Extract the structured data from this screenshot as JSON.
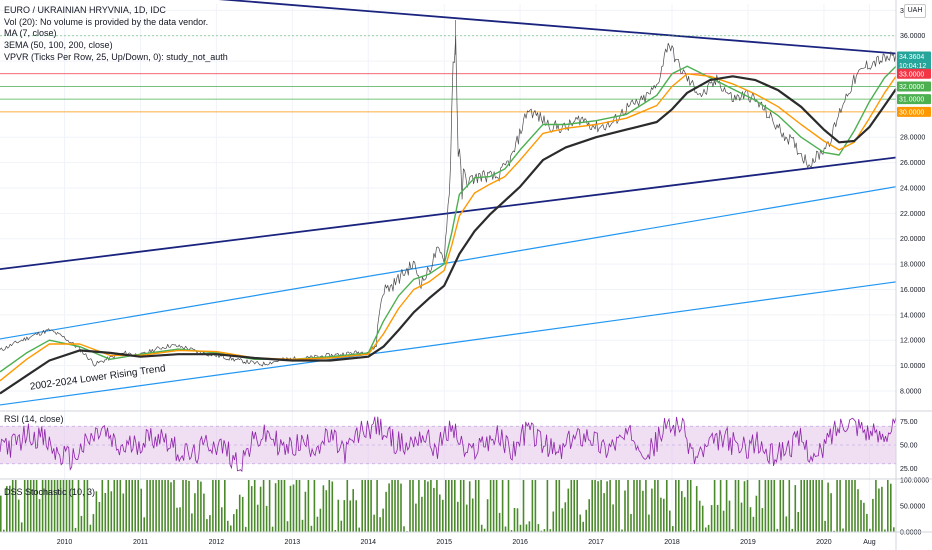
{
  "header": {
    "title": "EURO / UKRAINIAN HRYVNIA, 1D, IDC",
    "studies": [
      "Vol (20): No volume is provided by the data vendor.",
      "MA (7, close)",
      "3EMA (50, 100, 200, close)",
      "VPVR (Ticks Per Row, 25, Up/Down, 0): study_not_auth"
    ]
  },
  "currency_button": "UAH",
  "price_tags": [
    {
      "label": "34.3604",
      "value": 34.36,
      "color": "#26a69a"
    },
    {
      "label": "10:04:12",
      "value": 33.65,
      "color": "#26a69a"
    },
    {
      "label": "33.0000",
      "value": 33.0,
      "color": "#f23645"
    },
    {
      "label": "32.0000",
      "value": 32.0,
      "color": "#4caf50"
    },
    {
      "label": "31.0000",
      "value": 31.0,
      "color": "#4caf50"
    },
    {
      "label": "30.0000",
      "value": 30.0,
      "color": "#ff9800"
    }
  ],
  "trend_label": "2002-2024 Lower Rising Trend",
  "rsi_title": "RSI (14, close)",
  "stoch_title": "DSS Stochastic (10, 3)",
  "colors": {
    "price": "#4a4a4a",
    "ema50": "#4caf50",
    "ema100": "#ff9800",
    "ema200": "#2b2b2b",
    "upper_trend": "#1a237e",
    "lower_trend": "#2196f3",
    "rsi_line": "#8e24aa",
    "rsi_band": "#e1bee7",
    "stoch_bars": "#4a8a2a"
  },
  "chart_data": [
    {
      "type": "line",
      "title": "EURO / UKRAINIAN HRYVNIA, 1D, IDC",
      "x_label": "",
      "y_label": "",
      "x_ticks": [
        "2010",
        "2011",
        "2012",
        "2013",
        "2014",
        "2015",
        "2016",
        "2017",
        "2018",
        "2019",
        "2020",
        "Aug"
      ],
      "y_ticks": [
        "8.0000",
        "10.0000",
        "12.0000",
        "14.0000",
        "16.0000",
        "18.0000",
        "20.0000",
        "22.0000",
        "24.0000",
        "26.0000",
        "28.0000",
        "30.0000",
        "32.0000",
        "34.0000",
        "36.0000",
        "38.0000"
      ],
      "ylim": [
        6.5,
        38.5
      ],
      "xlim": [
        2009.15,
        2020.95
      ],
      "series": [
        {
          "name": "",
          "x": [
            2009.15,
            2009.4,
            2009.6,
            2009.8,
            2010.0,
            2010.2,
            2010.4,
            2010.6,
            2010.8,
            2011.0,
            2011.2,
            2011.4,
            2011.6,
            2011.8,
            2012.0,
            2012.3,
            2012.6,
            2012.9,
            2013.2,
            2013.5,
            2013.8,
            2014.0,
            2014.1,
            2014.15,
            2014.2,
            2014.3,
            2014.45,
            2014.6,
            2014.7,
            2014.8,
            2014.9,
            2015.0,
            2015.08,
            2015.12,
            2015.15,
            2015.18,
            2015.22,
            2015.3,
            2015.5,
            2015.7,
            2015.9,
            2016.1,
            2016.2,
            2016.4,
            2016.6,
            2016.8,
            2017.0,
            2017.2,
            2017.4,
            2017.6,
            2017.8,
            2017.95,
            2018.1,
            2018.25,
            2018.4,
            2018.6,
            2018.8,
            2019.0,
            2019.2,
            2019.4,
            2019.6,
            2019.8,
            2019.95,
            2020.1,
            2020.25,
            2020.4,
            2020.55,
            2020.7,
            2020.85,
            2020.95
          ],
          "y": [
            11.2,
            11.9,
            12.4,
            12.8,
            12.2,
            11.3,
            10.1,
            10.6,
            11.0,
            10.8,
            11.3,
            11.6,
            11.4,
            11.0,
            10.8,
            10.4,
            10.1,
            10.5,
            10.6,
            10.8,
            11.0,
            11.1,
            11.5,
            14.5,
            16.0,
            16.2,
            17.2,
            18.0,
            16.5,
            17.5,
            19.0,
            18.5,
            25.0,
            34.5,
            36.0,
            28.0,
            24.0,
            24.5,
            25.0,
            24.8,
            26.5,
            30.2,
            29.8,
            28.9,
            28.7,
            29.5,
            28.8,
            29.0,
            30.3,
            30.8,
            32.0,
            35.5,
            33.5,
            32.2,
            31.3,
            32.5,
            31.0,
            31.4,
            30.3,
            28.7,
            27.5,
            25.9,
            26.7,
            28.0,
            30.7,
            32.5,
            33.6,
            34.0,
            34.2,
            34.36
          ]
        },
        {
          "name": "",
          "x": [
            2009.15,
            2009.5,
            2009.8,
            2010.2,
            2010.6,
            2011.0,
            2011.5,
            2012.0,
            2012.5,
            2013.0,
            2013.5,
            2014.0,
            2014.2,
            2014.4,
            2014.6,
            2014.8,
            2015.0,
            2015.1,
            2015.2,
            2015.4,
            2015.6,
            2015.8,
            2016.0,
            2016.3,
            2016.6,
            2017.0,
            2017.4,
            2017.8,
            2018.0,
            2018.2,
            2018.5,
            2018.8,
            2019.1,
            2019.4,
            2019.7,
            2020.0,
            2020.2,
            2020.4,
            2020.6,
            2020.8,
            2020.95
          ],
          "y": [
            9.5,
            11.0,
            12.0,
            11.5,
            10.5,
            10.9,
            11.3,
            11.0,
            10.5,
            10.5,
            10.7,
            11.0,
            13.5,
            15.5,
            16.8,
            17.2,
            18.0,
            20.5,
            23.5,
            24.8,
            24.9,
            25.5,
            27.0,
            29.0,
            29.0,
            29.3,
            29.8,
            31.3,
            33.0,
            33.6,
            32.7,
            31.8,
            30.9,
            29.7,
            28.0,
            26.8,
            26.6,
            28.5,
            30.8,
            32.7,
            33.6
          ]
        },
        {
          "name": "",
          "x": [
            2009.15,
            2009.5,
            2009.8,
            2010.2,
            2010.6,
            2011.0,
            2011.5,
            2012.0,
            2012.5,
            2013.0,
            2013.5,
            2014.0,
            2014.2,
            2014.4,
            2014.6,
            2014.8,
            2015.0,
            2015.1,
            2015.2,
            2015.4,
            2015.6,
            2015.8,
            2016.0,
            2016.3,
            2016.6,
            2017.0,
            2017.4,
            2017.8,
            2018.0,
            2018.2,
            2018.5,
            2018.8,
            2019.1,
            2019.4,
            2019.7,
            2020.0,
            2020.2,
            2020.4,
            2020.6,
            2020.8,
            2020.95
          ],
          "y": [
            8.8,
            10.5,
            11.7,
            11.7,
            10.8,
            10.8,
            11.2,
            11.1,
            10.6,
            10.5,
            10.6,
            10.9,
            12.5,
            14.5,
            16.0,
            16.6,
            17.5,
            19.5,
            21.8,
            23.6,
            24.3,
            24.9,
            26.2,
            28.3,
            28.7,
            29.0,
            29.5,
            30.5,
            32.0,
            33.0,
            32.8,
            32.2,
            31.4,
            30.4,
            29.0,
            27.7,
            27.0,
            27.6,
            29.5,
            31.5,
            32.8
          ]
        },
        {
          "name": "",
          "x": [
            2009.15,
            2009.5,
            2009.8,
            2010.2,
            2010.6,
            2011.0,
            2011.5,
            2012.0,
            2012.5,
            2013.0,
            2013.5,
            2014.0,
            2014.2,
            2014.4,
            2014.6,
            2014.8,
            2015.0,
            2015.2,
            2015.4,
            2015.6,
            2015.8,
            2016.0,
            2016.3,
            2016.6,
            2017.0,
            2017.4,
            2017.8,
            2018.0,
            2018.2,
            2018.5,
            2018.8,
            2019.1,
            2019.4,
            2019.7,
            2020.0,
            2020.2,
            2020.4,
            2020.6,
            2020.8,
            2020.95
          ],
          "y": [
            7.8,
            9.2,
            10.4,
            11.2,
            11.0,
            10.7,
            10.9,
            10.9,
            10.6,
            10.4,
            10.4,
            10.7,
            11.5,
            12.8,
            14.2,
            15.3,
            16.3,
            18.8,
            20.6,
            21.9,
            23.0,
            24.1,
            26.2,
            27.2,
            28.0,
            28.6,
            29.2,
            30.2,
            31.5,
            32.5,
            32.8,
            32.5,
            31.7,
            30.4,
            28.6,
            27.6,
            27.7,
            28.8,
            30.5,
            31.8
          ]
        }
      ]
    },
    {
      "type": "line",
      "title": "RSI (14, close)",
      "y_ticks": [
        "25.00",
        "50.00",
        "75.00"
      ],
      "ylim": [
        15,
        85
      ],
      "x": [
        2009.15,
        2009.3,
        2009.5,
        2009.7,
        2009.9,
        2010.1,
        2010.3,
        2010.5,
        2010.7,
        2010.9,
        2011.1,
        2011.3,
        2011.5,
        2011.7,
        2011.9,
        2012.1,
        2012.3,
        2012.5,
        2012.7,
        2012.9,
        2013.1,
        2013.3,
        2013.5,
        2013.7,
        2013.9,
        2014.1,
        2014.3,
        2014.5,
        2014.7,
        2014.9,
        2015.1,
        2015.3,
        2015.5,
        2015.7,
        2015.9,
        2016.1,
        2016.3,
        2016.5,
        2016.7,
        2016.9,
        2017.1,
        2017.3,
        2017.5,
        2017.7,
        2017.9,
        2018.1,
        2018.3,
        2018.5,
        2018.7,
        2018.9,
        2019.1,
        2019.3,
        2019.5,
        2019.7,
        2019.9,
        2020.1,
        2020.3,
        2020.5,
        2020.7,
        2020.95
      ],
      "values": [
        55,
        48,
        62,
        58,
        40,
        35,
        52,
        66,
        45,
        50,
        57,
        60,
        43,
        38,
        53,
        47,
        30,
        55,
        61,
        44,
        52,
        49,
        58,
        42,
        64,
        72,
        56,
        48,
        62,
        45,
        70,
        38,
        53,
        59,
        44,
        68,
        51,
        40,
        57,
        63,
        46,
        55,
        60,
        42,
        67,
        74,
        36,
        49,
        58,
        45,
        53,
        38,
        47,
        56,
        33,
        62,
        78,
        70,
        58,
        72
      ]
    },
    {
      "type": "bar",
      "title": "DSS Stochastic (10, 3)",
      "y_ticks": [
        "0.0000",
        "50.0000",
        "100.0000"
      ],
      "ylim": [
        0,
        100
      ]
    }
  ]
}
